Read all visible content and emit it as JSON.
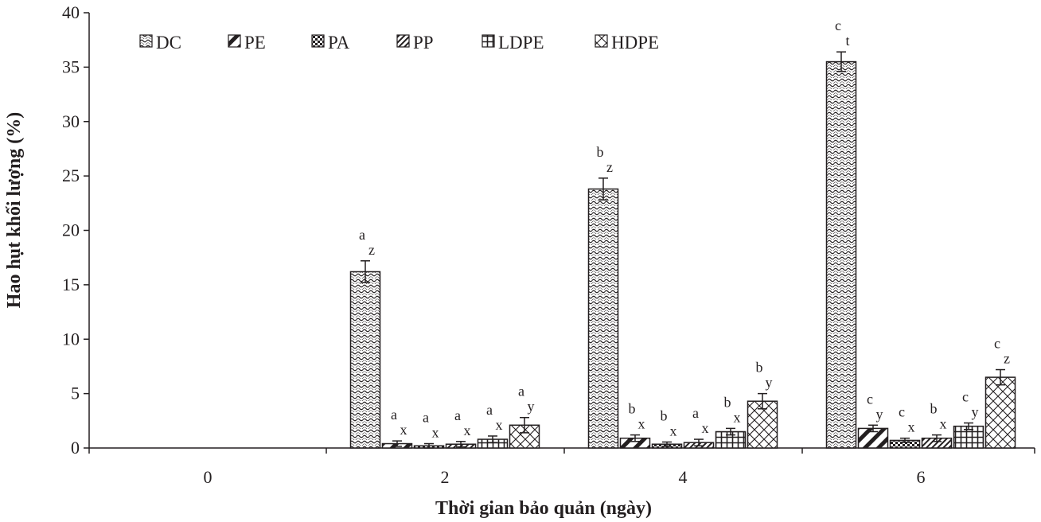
{
  "chart_data": {
    "type": "bar",
    "xlabel": "Thời gian bảo quản (ngày)",
    "ylabel": "Hao hụt khối lượng (%)",
    "categories": [
      "0",
      "2",
      "4",
      "6"
    ],
    "ylim": [
      0,
      40
    ],
    "yticks": [
      "0",
      "5",
      "10",
      "15",
      "20",
      "25",
      "30",
      "35",
      "40"
    ],
    "legend_position": "top-left",
    "grid": false,
    "series": [
      {
        "name": "DC",
        "pattern": "wave",
        "values": [
          0,
          16.2,
          23.8,
          35.5
        ],
        "errors": [
          0,
          1.0,
          1.0,
          0.9
        ],
        "sig1": [
          "",
          "a",
          "b",
          "c"
        ],
        "sig2": [
          "",
          "z",
          "z",
          "t"
        ]
      },
      {
        "name": "PE",
        "pattern": "diagonal",
        "values": [
          0,
          0.4,
          0.9,
          1.8
        ],
        "errors": [
          0,
          0.25,
          0.3,
          0.3
        ],
        "sig1": [
          "",
          "a",
          "b",
          "c"
        ],
        "sig2": [
          "",
          "x",
          "x",
          "y"
        ]
      },
      {
        "name": "PA",
        "pattern": "checker",
        "values": [
          0,
          0.2,
          0.35,
          0.7
        ],
        "errors": [
          0,
          0.2,
          0.2,
          0.2
        ],
        "sig1": [
          "",
          "a",
          "b",
          "c"
        ],
        "sig2": [
          "",
          "x",
          "x",
          "x"
        ]
      },
      {
        "name": "PP",
        "pattern": "stripes",
        "values": [
          0,
          0.35,
          0.5,
          0.9
        ],
        "errors": [
          0,
          0.25,
          0.3,
          0.3
        ],
        "sig1": [
          "",
          "a",
          "a",
          "b"
        ],
        "sig2": [
          "",
          "x",
          "x",
          "x"
        ]
      },
      {
        "name": "LDPE",
        "pattern": "grid",
        "values": [
          0,
          0.8,
          1.5,
          2.0
        ],
        "errors": [
          0,
          0.3,
          0.3,
          0.3
        ],
        "sig1": [
          "",
          "a",
          "b",
          "c"
        ],
        "sig2": [
          "",
          "x",
          "x",
          "y"
        ]
      },
      {
        "name": "HDPE",
        "pattern": "crosshatch",
        "values": [
          0,
          2.1,
          4.3,
          6.5
        ],
        "errors": [
          0,
          0.7,
          0.7,
          0.7
        ],
        "sig1": [
          "",
          "a",
          "b",
          "c"
        ],
        "sig2": [
          "",
          "y",
          "y",
          "z"
        ]
      }
    ],
    "colors": {
      "ink": "#231f20",
      "background": "#ffffff"
    }
  }
}
